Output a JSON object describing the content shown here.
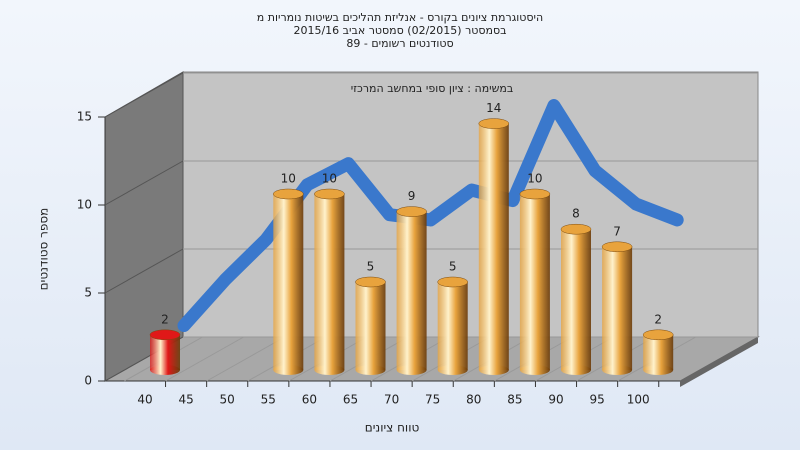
{
  "chart_data": {
    "type": "bar",
    "title": [
      "היסטוגרמת ציונים בקורס - אנליזת תהליכים בשיטות נומריות מ",
      "בסמסטר  (02/2015)  סמסטר אביב 2015/16",
      "סטודנטים רשומים - 89"
    ],
    "annotation": "במשימה : ציון סופי במחשב המרכזי",
    "x_label": "טווח ציונים",
    "y_label": "מספר סטודנטים",
    "categories": [
      "40",
      "45",
      "50",
      "55",
      "60",
      "65",
      "70",
      "75",
      "80",
      "85",
      "90",
      "95",
      "100"
    ],
    "values": [
      2,
      null,
      null,
      10,
      10,
      5,
      9,
      5,
      14,
      10,
      8,
      7,
      2
    ],
    "colors": [
      "#e01818",
      "#e8a33d",
      "#e8a33d",
      "#e8a33d",
      "#e8a33d",
      "#e8a33d",
      "#e8a33d",
      "#e8a33d",
      "#e8a33d",
      "#e8a33d",
      "#e8a33d",
      "#e8a33d",
      "#e8a33d"
    ],
    "trend": {
      "color": "#3a78cc",
      "values": [
        1.9,
        4.5,
        6.8,
        9.9,
        11.1,
        8.2,
        7.9,
        9.6,
        9.0,
        14.4,
        10.7,
        8.8,
        7.9
      ]
    },
    "ylim": [
      0,
      15
    ],
    "yticks": [
      0,
      5,
      10,
      15
    ],
    "grid": true
  }
}
